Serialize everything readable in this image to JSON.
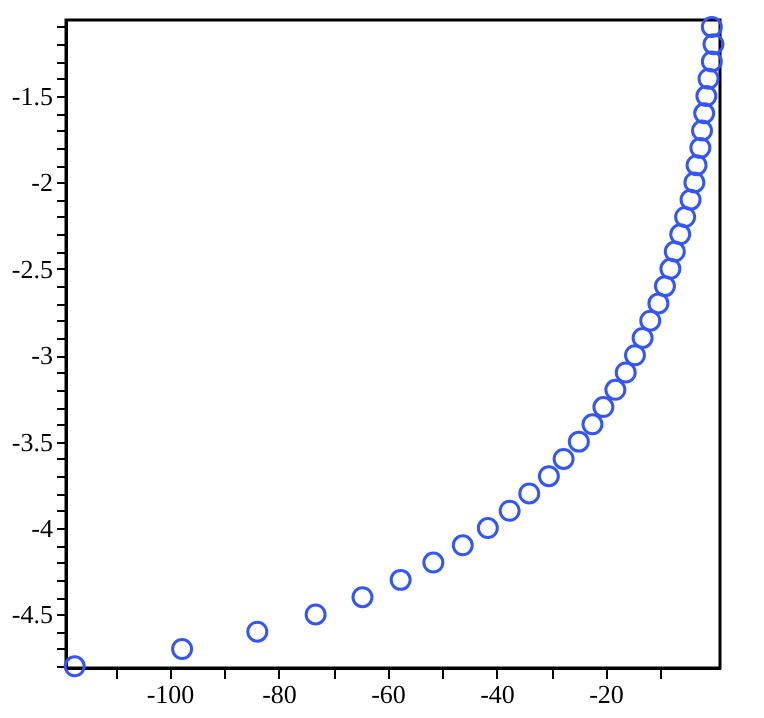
{
  "chart_data": {
    "type": "scatter",
    "marker": "circle",
    "grid": false,
    "x": [
      -117.4,
      -97.7,
      -83.9,
      -73.2,
      -64.6,
      -57.6,
      -51.6,
      -46.2,
      -41.6,
      -37.6,
      -34.0,
      -30.4,
      -27.7,
      -24.9,
      -22.4,
      -20.4,
      -18.2,
      -16.3,
      -14.6,
      -13.2,
      -11.8,
      -10.3,
      -9.1,
      -8.1,
      -7.3,
      -6.3,
      -5.4,
      -4.4,
      -3.7,
      -3.3,
      -2.6,
      -2.3,
      -1.9,
      -1.5,
      -1.1,
      -0.5,
      -0.2,
      -0.5
    ],
    "series": [
      {
        "color": "#3355ff",
        "values": [
          -4.8,
          -4.7,
          -4.6,
          -4.5,
          -4.4,
          -4.3,
          -4.2,
          -4.1,
          -4.0,
          -3.9,
          -3.8,
          -3.7,
          -3.6,
          -3.5,
          -3.4,
          -3.3,
          -3.2,
          -3.1,
          -3.0,
          -2.9,
          -2.8,
          -2.7,
          -2.6,
          -2.5,
          -2.4,
          -2.3,
          -2.2,
          -2.1,
          -2.0,
          -1.9,
          -1.8,
          -1.7,
          -1.6,
          -1.5,
          -1.4,
          -1.3,
          -1.2,
          -1.1
        ]
      }
    ],
    "xlim": [
      -119,
      1
    ],
    "xticks": [
      {
        "value": -110,
        "label": null
      },
      -100,
      {
        "value": -90,
        "label": null
      },
      -80,
      {
        "value": -70,
        "label": null
      },
      -60,
      {
        "value": -50,
        "label": null
      },
      -40,
      {
        "value": -30,
        "label": null
      },
      -20,
      {
        "value": -10,
        "label": null
      }
    ],
    "ylim": [
      -4.81,
      -1.06
    ],
    "yticks": [
      {
        "value": -4.8,
        "label": null
      },
      {
        "value": -4.7,
        "label": null
      },
      {
        "value": -4.6,
        "label": null
      },
      -4.5,
      {
        "value": -4.4,
        "label": null
      },
      {
        "value": -4.3,
        "label": null
      },
      {
        "value": -4.2,
        "label": null
      },
      {
        "value": -4.1,
        "label": null
      },
      -4,
      {
        "value": -3.9,
        "label": null
      },
      {
        "value": -3.8,
        "label": null
      },
      {
        "value": -3.7,
        "label": null
      },
      {
        "value": -3.6,
        "label": null
      },
      -3.5,
      {
        "value": -3.4,
        "label": null
      },
      {
        "value": -3.3,
        "label": null
      },
      {
        "value": -3.2,
        "label": null
      },
      {
        "value": -3.1,
        "label": null
      },
      -3,
      {
        "value": -2.9,
        "label": null
      },
      {
        "value": -2.8,
        "label": null
      },
      {
        "value": -2.7,
        "label": null
      },
      {
        "value": -2.6,
        "label": null
      },
      -2.5,
      {
        "value": -2.4,
        "label": null
      },
      {
        "value": -2.3,
        "label": null
      },
      {
        "value": -2.2,
        "label": null
      },
      {
        "value": -2.1,
        "label": null
      },
      -2,
      {
        "value": -1.9,
        "label": null
      },
      {
        "value": -1.8,
        "label": null
      },
      {
        "value": -1.7,
        "label": null
      },
      {
        "value": -1.6,
        "label": null
      },
      -1.5,
      {
        "value": -1.4,
        "label": null
      },
      {
        "value": -1.3,
        "label": null
      },
      {
        "value": -1.2,
        "label": null
      },
      {
        "value": -1.1,
        "label": null
      }
    ]
  }
}
